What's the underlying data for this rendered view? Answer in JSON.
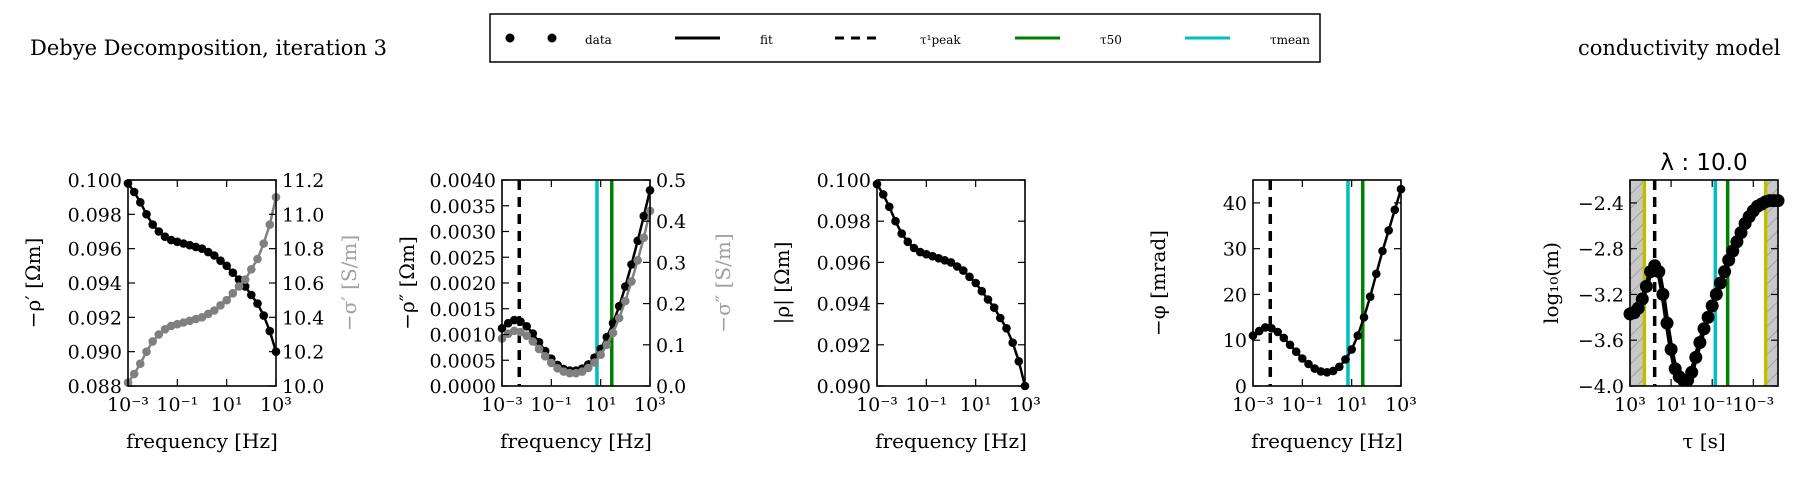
{
  "figure": {
    "title_left": "Debye Decomposition, iteration 3",
    "title_right": "conductivity model"
  },
  "legend": {
    "placement": "top-center",
    "entries": [
      {
        "label": "data",
        "style": "markers",
        "color": "#000000"
      },
      {
        "label": "fit",
        "style": "solid",
        "color": "#000000"
      },
      {
        "label": "τ¹peak",
        "style": "dashed",
        "color": "#000000"
      },
      {
        "label": "τ50",
        "style": "solid",
        "color": "#008000"
      },
      {
        "label": "τmean",
        "style": "solid",
        "color": "#00bfbf"
      }
    ]
  },
  "colors": {
    "data": "#000000",
    "secondary": "#808080",
    "tau50": "#008000",
    "taumean": "#00bfbf",
    "tau_limits": "#bfbf00",
    "hatch_fill": "#c8c8c8"
  },
  "chart_data": [
    {
      "type": "line",
      "id": "rho_real",
      "xlabel": "frequency [Hz]",
      "ylabel": "−ρ′ [Ωm]",
      "ylabel_right": "−σ′ [S/m]",
      "xscale": "log",
      "xlim": [
        -3,
        3
      ],
      "xticks": [
        -3,
        -1,
        1,
        3
      ],
      "xtick_labels": [
        "10⁻³",
        "10⁻¹",
        "10¹",
        "10³"
      ],
      "ylim": [
        0.088,
        0.1
      ],
      "yticks": [
        "0.088",
        "0.090",
        "0.092",
        "0.094",
        "0.096",
        "0.098",
        "0.100"
      ],
      "ylim_right": [
        10.0,
        11.2
      ],
      "yticks_right": [
        "10.0",
        "10.2",
        "10.4",
        "10.6",
        "10.8",
        "11.0",
        "11.2"
      ],
      "x_log10": [
        -3.0,
        -2.75,
        -2.5,
        -2.25,
        -2.0,
        -1.75,
        -1.5,
        -1.25,
        -1.0,
        -0.75,
        -0.5,
        -0.25,
        0.0,
        0.25,
        0.5,
        0.75,
        1.0,
        1.25,
        1.5,
        1.75,
        2.0,
        2.25,
        2.5,
        2.75,
        3.0
      ],
      "series": [
        {
          "axis": "left",
          "color": "#000000",
          "values": [
            0.0998,
            0.0993,
            0.0987,
            0.098,
            0.0974,
            0.097,
            0.0967,
            0.0965,
            0.0964,
            0.0963,
            0.0962,
            0.0961,
            0.096,
            0.0958,
            0.0956,
            0.0953,
            0.095,
            0.0946,
            0.0942,
            0.0938,
            0.0933,
            0.0928,
            0.0921,
            0.0912,
            0.09
          ]
        },
        {
          "axis": "right",
          "color": "#808080",
          "values": [
            10.02,
            10.07,
            10.13,
            10.2,
            10.26,
            10.3,
            10.33,
            10.35,
            10.36,
            10.37,
            10.38,
            10.39,
            10.4,
            10.42,
            10.44,
            10.47,
            10.5,
            10.54,
            10.58,
            10.62,
            10.68,
            10.74,
            10.83,
            10.94,
            11.1
          ]
        }
      ]
    },
    {
      "type": "line",
      "id": "rho_imag",
      "xlabel": "frequency [Hz]",
      "ylabel": "−ρ″ [Ωm]",
      "ylabel_right": "−σ″ [S/m]",
      "xscale": "log",
      "xlim": [
        -3,
        3
      ],
      "xticks": [
        -3,
        -1,
        1,
        3
      ],
      "xtick_labels": [
        "10⁻³",
        "10⁻¹",
        "10¹",
        "10³"
      ],
      "ylim": [
        0.0,
        0.004
      ],
      "yticks": [
        "0.0000",
        "0.0005",
        "0.0010",
        "0.0015",
        "0.0020",
        "0.0025",
        "0.0030",
        "0.0035",
        "0.0040"
      ],
      "ylim_right": [
        0.0,
        0.5
      ],
      "yticks_right": [
        "0.0",
        "0.1",
        "0.2",
        "0.3",
        "0.4",
        "0.5"
      ],
      "x_log10": [
        -3.0,
        -2.75,
        -2.5,
        -2.25,
        -2.0,
        -1.75,
        -1.5,
        -1.25,
        -1.0,
        -0.75,
        -0.5,
        -0.25,
        0.0,
        0.25,
        0.5,
        0.75,
        1.0,
        1.25,
        1.5,
        1.75,
        2.0,
        2.25,
        2.5,
        2.75,
        3.0
      ],
      "series": [
        {
          "axis": "left",
          "color": "#000000",
          "values": [
            0.00112,
            0.00122,
            0.00128,
            0.00125,
            0.00116,
            0.00102,
            0.00085,
            0.00068,
            0.00053,
            0.00041,
            0.00033,
            0.0003,
            0.0003,
            0.00034,
            0.00042,
            0.00055,
            0.00072,
            0.00095,
            0.00122,
            0.00155,
            0.00193,
            0.00236,
            0.00282,
            0.0033,
            0.0038
          ]
        },
        {
          "axis": "right",
          "color": "#808080",
          "values": [
            0.115,
            0.127,
            0.134,
            0.131,
            0.122,
            0.108,
            0.09,
            0.072,
            0.056,
            0.043,
            0.035,
            0.031,
            0.031,
            0.035,
            0.044,
            0.057,
            0.076,
            0.1,
            0.129,
            0.165,
            0.206,
            0.254,
            0.305,
            0.36,
            0.425
          ]
        }
      ],
      "vlines": [
        {
          "x_log10": -2.3,
          "color": "#000000",
          "style": "dashed"
        },
        {
          "x_log10": 0.85,
          "color": "#00bfbf",
          "style": "solid"
        },
        {
          "x_log10": 1.45,
          "color": "#008000",
          "style": "solid"
        }
      ]
    },
    {
      "type": "line",
      "id": "rho_abs",
      "xlabel": "frequency [Hz]",
      "ylabel": "|ρ| [Ωm]",
      "xscale": "log",
      "xlim": [
        -3,
        3
      ],
      "xticks": [
        -3,
        -1,
        1,
        3
      ],
      "xtick_labels": [
        "10⁻³",
        "10⁻¹",
        "10¹",
        "10³"
      ],
      "ylim": [
        0.09,
        0.1
      ],
      "yticks": [
        "0.090",
        "0.092",
        "0.094",
        "0.096",
        "0.098",
        "0.100"
      ],
      "x_log10": [
        -3.0,
        -2.75,
        -2.5,
        -2.25,
        -2.0,
        -1.75,
        -1.5,
        -1.25,
        -1.0,
        -0.75,
        -0.5,
        -0.25,
        0.0,
        0.25,
        0.5,
        0.75,
        1.0,
        1.25,
        1.5,
        1.75,
        2.0,
        2.25,
        2.5,
        2.75,
        3.0
      ],
      "series": [
        {
          "axis": "left",
          "color": "#000000",
          "values": [
            0.0998,
            0.0993,
            0.0987,
            0.098,
            0.0974,
            0.097,
            0.0967,
            0.0965,
            0.0964,
            0.0963,
            0.0962,
            0.0961,
            0.096,
            0.0958,
            0.0956,
            0.0953,
            0.095,
            0.0946,
            0.0942,
            0.0938,
            0.0933,
            0.0928,
            0.0921,
            0.0912,
            0.09
          ]
        }
      ]
    },
    {
      "type": "line",
      "id": "phase",
      "xlabel": "frequency [Hz]",
      "ylabel": "−φ [mrad]",
      "xscale": "log",
      "xlim": [
        -3,
        3
      ],
      "xticks": [
        -3,
        -1,
        1,
        3
      ],
      "xtick_labels": [
        "10⁻³",
        "10⁻¹",
        "10¹",
        "10³"
      ],
      "ylim": [
        0,
        45
      ],
      "yticks": [
        "0",
        "10",
        "20",
        "30",
        "40"
      ],
      "x_log10": [
        -3.0,
        -2.75,
        -2.5,
        -2.25,
        -2.0,
        -1.75,
        -1.5,
        -1.25,
        -1.0,
        -0.75,
        -0.5,
        -0.25,
        0.0,
        0.25,
        0.5,
        0.75,
        1.0,
        1.25,
        1.5,
        1.75,
        2.0,
        2.25,
        2.5,
        2.75,
        3.0
      ],
      "series": [
        {
          "axis": "left",
          "color": "#000000",
          "values": [
            11.0,
            12.0,
            12.8,
            12.6,
            11.8,
            10.5,
            9.0,
            7.5,
            6.0,
            4.8,
            3.8,
            3.2,
            3.0,
            3.3,
            4.2,
            5.8,
            8.0,
            11.0,
            15.0,
            19.5,
            24.5,
            29.5,
            34.0,
            38.5,
            43.0
          ]
        }
      ],
      "vlines": [
        {
          "x_log10": -2.3,
          "color": "#000000",
          "style": "dashed"
        },
        {
          "x_log10": 0.85,
          "color": "#00bfbf",
          "style": "solid"
        },
        {
          "x_log10": 1.45,
          "color": "#008000",
          "style": "solid"
        }
      ]
    },
    {
      "type": "line",
      "id": "conductivity_model",
      "title": "λ : 10.0",
      "xlabel": "τ [s]",
      "ylabel": "log₁₀(m)",
      "xscale": "log",
      "x_inverted": true,
      "xlim": [
        3.0,
        -4.2
      ],
      "xticks": [
        3,
        1,
        -1,
        -3
      ],
      "xtick_labels": [
        "10³",
        "10¹",
        "10⁻¹",
        "10⁻³"
      ],
      "ylim": [
        -4.0,
        -2.2
      ],
      "yticks": [
        "−2.4",
        "−2.8",
        "−3.2",
        "−3.6",
        "−4.0"
      ],
      "shaded_regions": [
        [
          3.0,
          2.3
        ],
        [
          -3.6,
          -4.2
        ]
      ],
      "x_log10": [
        3.0,
        2.8,
        2.6,
        2.4,
        2.2,
        2.0,
        1.8,
        1.6,
        1.4,
        1.2,
        1.0,
        0.8,
        0.6,
        0.4,
        0.2,
        0.0,
        -0.2,
        -0.4,
        -0.6,
        -0.8,
        -1.0,
        -1.2,
        -1.4,
        -1.6,
        -1.8,
        -2.0,
        -2.2,
        -2.4,
        -2.6,
        -2.8,
        -3.0,
        -3.2,
        -3.4,
        -3.6,
        -3.8,
        -4.0,
        -4.2
      ],
      "series": [
        {
          "axis": "left",
          "color": "#000000",
          "values": [
            -3.37,
            -3.36,
            -3.32,
            -3.24,
            -3.13,
            -3.0,
            -2.95,
            -3.0,
            -3.2,
            -3.45,
            -3.68,
            -3.85,
            -3.92,
            -3.95,
            -3.95,
            -3.88,
            -3.75,
            -3.62,
            -3.5,
            -3.4,
            -3.3,
            -3.2,
            -3.1,
            -3.0,
            -2.9,
            -2.82,
            -2.74,
            -2.66,
            -2.58,
            -2.52,
            -2.47,
            -2.43,
            -2.41,
            -2.39,
            -2.38,
            -2.38,
            -2.38
          ]
        }
      ],
      "vlines": [
        {
          "x_log10": 2.3,
          "color": "#bfbf00",
          "style": "solid"
        },
        {
          "x_log10": 1.8,
          "color": "#000000",
          "style": "dashed"
        },
        {
          "x_log10": -1.15,
          "color": "#00bfbf",
          "style": "solid"
        },
        {
          "x_log10": -1.75,
          "color": "#008000",
          "style": "solid"
        },
        {
          "x_log10": -3.6,
          "color": "#bfbf00",
          "style": "solid"
        }
      ]
    }
  ]
}
